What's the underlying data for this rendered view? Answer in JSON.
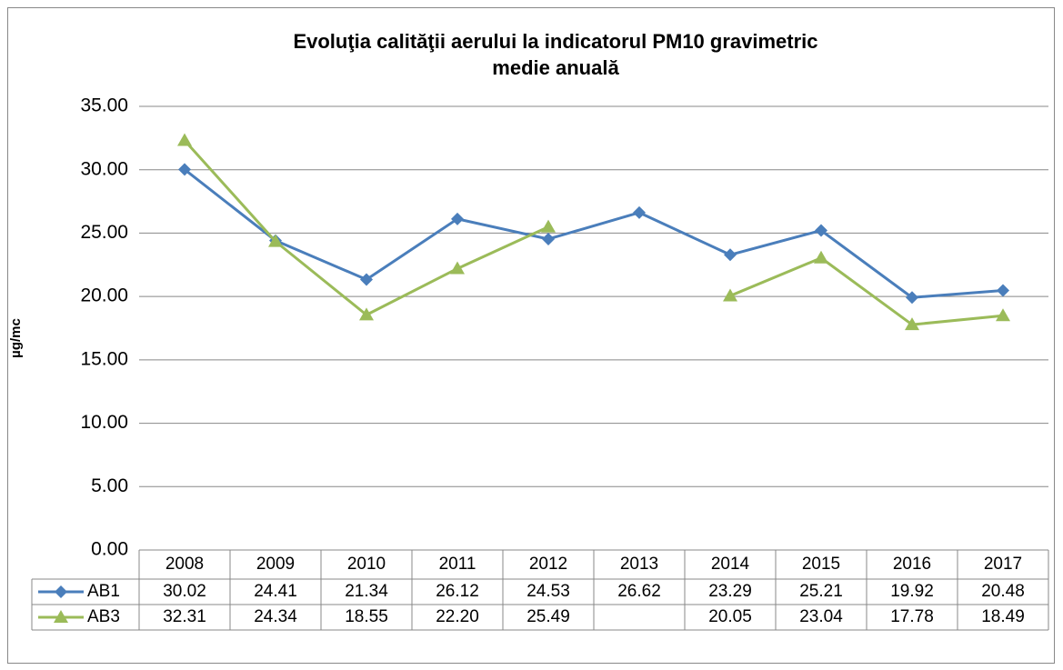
{
  "chart_data": {
    "type": "line",
    "title": "Evoluţia calităţii aerului la indicatorul PM10 gravimetric",
    "subtitle": "medie anuală",
    "y_label": "µg/mc",
    "categories": [
      "2008",
      "2009",
      "2010",
      "2011",
      "2012",
      "2013",
      "2014",
      "2015",
      "2016",
      "2017"
    ],
    "series": [
      {
        "name": "AB1",
        "color": "#4a7ebb",
        "marker": "diamond",
        "values": [
          30.02,
          24.41,
          21.34,
          26.12,
          24.53,
          26.62,
          23.29,
          25.21,
          19.92,
          20.48
        ],
        "value_labels": [
          "30.02",
          "24.41",
          "21.34",
          "26.12",
          "24.53",
          "26.62",
          "23.29",
          "25.21",
          "19.92",
          "20.48"
        ]
      },
      {
        "name": "AB3",
        "color": "#9bbb59",
        "marker": "triangle",
        "values": [
          32.31,
          24.34,
          18.55,
          22.2,
          25.49,
          null,
          20.05,
          23.04,
          17.78,
          18.49
        ],
        "value_labels": [
          "32.31",
          "24.34",
          "18.55",
          "22.20",
          "25.49",
          null,
          "20.05",
          "23.04",
          "17.78",
          "18.49"
        ]
      }
    ],
    "ylim": [
      0,
      35
    ],
    "yticks": [
      {
        "value": 0,
        "label": "0.00"
      },
      {
        "value": 5,
        "label": "5.00"
      },
      {
        "value": 10,
        "label": "10.00"
      },
      {
        "value": 15,
        "label": "15.00"
      },
      {
        "value": 20,
        "label": "20.00"
      },
      {
        "value": 25,
        "label": "25.00"
      },
      {
        "value": 30,
        "label": "30.00"
      },
      {
        "value": 35,
        "label": "35.00"
      }
    ],
    "grid": true
  }
}
